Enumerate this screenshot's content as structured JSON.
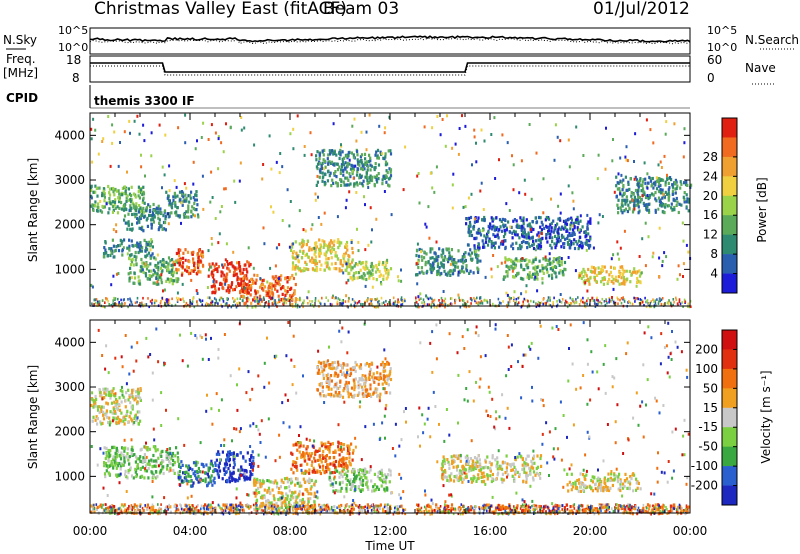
{
  "header": {
    "title": "Christmas Valley East (fitACF)",
    "beam": "Beam 03",
    "date": "01/Jul/2012"
  },
  "summary_panels": {
    "left_labels": {
      "nsky": "N.Sky",
      "freq": "Freq.",
      "freq_unit": "[MHz]",
      "cpid": "CPID"
    },
    "right_labels": {
      "nsearch": "N.Search",
      "nave": "Nave"
    },
    "noise_ticks_left": [
      "10^5",
      "10^0"
    ],
    "noise_ticks_right": [
      "10^5",
      "10^0"
    ],
    "freq_ticks": [
      "18",
      "8"
    ],
    "nave_ticks": [
      "60",
      "0"
    ],
    "cpid_text": "themis 3300 IF"
  },
  "chart_data": [
    {
      "type": "heatmap",
      "name": "power",
      "ylabel": "Slant Range [km]",
      "ylim": [
        180,
        4500
      ],
      "y_ticks": [
        1000,
        2000,
        3000,
        4000
      ],
      "xlim": [
        0,
        24
      ],
      "colorbar": {
        "label": "Power [dB]",
        "ticks": [
          "4",
          "8",
          "12",
          "16",
          "20",
          "24",
          "28"
        ],
        "colors": [
          "#1c1cd9",
          "#2a5fb0",
          "#2e8a70",
          "#5aaa5a",
          "#9ad24a",
          "#f0d040",
          "#f0a030",
          "#f06a20",
          "#e02010"
        ]
      },
      "regions": [
        {
          "t0": 0.0,
          "t1": 2.2,
          "r0": 2300,
          "r1": 2900,
          "level": 3
        },
        {
          "t0": 1.3,
          "t1": 3.0,
          "r0": 1900,
          "r1": 2500,
          "level": 2
        },
        {
          "t0": 0.5,
          "t1": 2.5,
          "r0": 1300,
          "r1": 1700,
          "level": 2
        },
        {
          "t0": 1.5,
          "t1": 3.5,
          "r0": 700,
          "r1": 1300,
          "level": 3
        },
        {
          "t0": 3.3,
          "t1": 4.5,
          "r0": 900,
          "r1": 1500,
          "level": 7
        },
        {
          "t0": 4.7,
          "t1": 6.4,
          "r0": 500,
          "r1": 1200,
          "level": 8
        },
        {
          "t0": 6.0,
          "t1": 8.2,
          "r0": 250,
          "r1": 900,
          "level": 7
        },
        {
          "t0": 3.0,
          "t1": 4.3,
          "r0": 2200,
          "r1": 2800,
          "level": 2
        },
        {
          "t0": 8.0,
          "t1": 10.5,
          "r0": 1000,
          "r1": 1700,
          "level": 5
        },
        {
          "t0": 10.2,
          "t1": 12.0,
          "r0": 800,
          "r1": 1200,
          "level": 4
        },
        {
          "t0": 9.0,
          "t1": 12.0,
          "r0": 2900,
          "r1": 3700,
          "level": 2
        },
        {
          "t0": 13.0,
          "t1": 15.5,
          "r0": 900,
          "r1": 1500,
          "level": 2
        },
        {
          "t0": 16.5,
          "t1": 19.0,
          "r0": 800,
          "r1": 1300,
          "level": 3
        },
        {
          "t0": 19.5,
          "t1": 22.0,
          "r0": 700,
          "r1": 1100,
          "level": 5
        },
        {
          "t0": 21.0,
          "t1": 24.0,
          "r0": 2300,
          "r1": 3100,
          "level": 2
        },
        {
          "t0": 15.0,
          "t1": 20.0,
          "r0": 1500,
          "r1": 2200,
          "level": 1
        }
      ]
    },
    {
      "type": "heatmap",
      "name": "velocity",
      "ylabel": "Slant Range [km]",
      "xlabel": "Time UT",
      "ylim": [
        180,
        4500
      ],
      "y_ticks": [
        1000,
        2000,
        3000,
        4000
      ],
      "xlim": [
        0,
        24
      ],
      "x_ticks": [
        "00:00",
        "04:00",
        "08:00",
        "12:00",
        "16:00",
        "20:00",
        "00:00"
      ],
      "colorbar": {
        "label": "Velocity [m s⁻¹]",
        "ticks": [
          "200",
          "100",
          "50",
          "15",
          "-15",
          "-50",
          "-100",
          "-200"
        ],
        "colors": [
          "#1c28c0",
          "#2a5fd0",
          "#3aa840",
          "#7ad040",
          "#c8c8c8",
          "#f0a020",
          "#f07010",
          "#e03010",
          "#d01010"
        ]
      },
      "regions": [
        {
          "t0": 0.0,
          "t1": 2.0,
          "r0": 2200,
          "r1": 3000,
          "level": 4
        },
        {
          "t0": 0.5,
          "t1": 3.5,
          "r0": 1000,
          "r1": 1700,
          "level": 3
        },
        {
          "t0": 3.5,
          "t1": 5.0,
          "r0": 800,
          "r1": 1400,
          "level": 1
        },
        {
          "t0": 5.0,
          "t1": 6.5,
          "r0": 900,
          "r1": 1600,
          "level": 0
        },
        {
          "t0": 6.5,
          "t1": 9.0,
          "r0": 300,
          "r1": 1000,
          "level": 4
        },
        {
          "t0": 8.0,
          "t1": 10.5,
          "r0": 1100,
          "r1": 1800,
          "level": 6
        },
        {
          "t0": 9.5,
          "t1": 12.0,
          "r0": 700,
          "r1": 1200,
          "level": 3
        },
        {
          "t0": 0.0,
          "t1": 12.5,
          "r0": 200,
          "r1": 400,
          "level": 5
        },
        {
          "t0": 13.0,
          "t1": 24.0,
          "r0": 200,
          "r1": 400,
          "level": 6
        },
        {
          "t0": 14.0,
          "t1": 18.0,
          "r0": 900,
          "r1": 1500,
          "level": 4
        },
        {
          "t0": 19.0,
          "t1": 22.0,
          "r0": 700,
          "r1": 1100,
          "level": 4
        },
        {
          "t0": 9.0,
          "t1": 12.0,
          "r0": 2800,
          "r1": 3600,
          "level": 5
        }
      ]
    }
  ]
}
